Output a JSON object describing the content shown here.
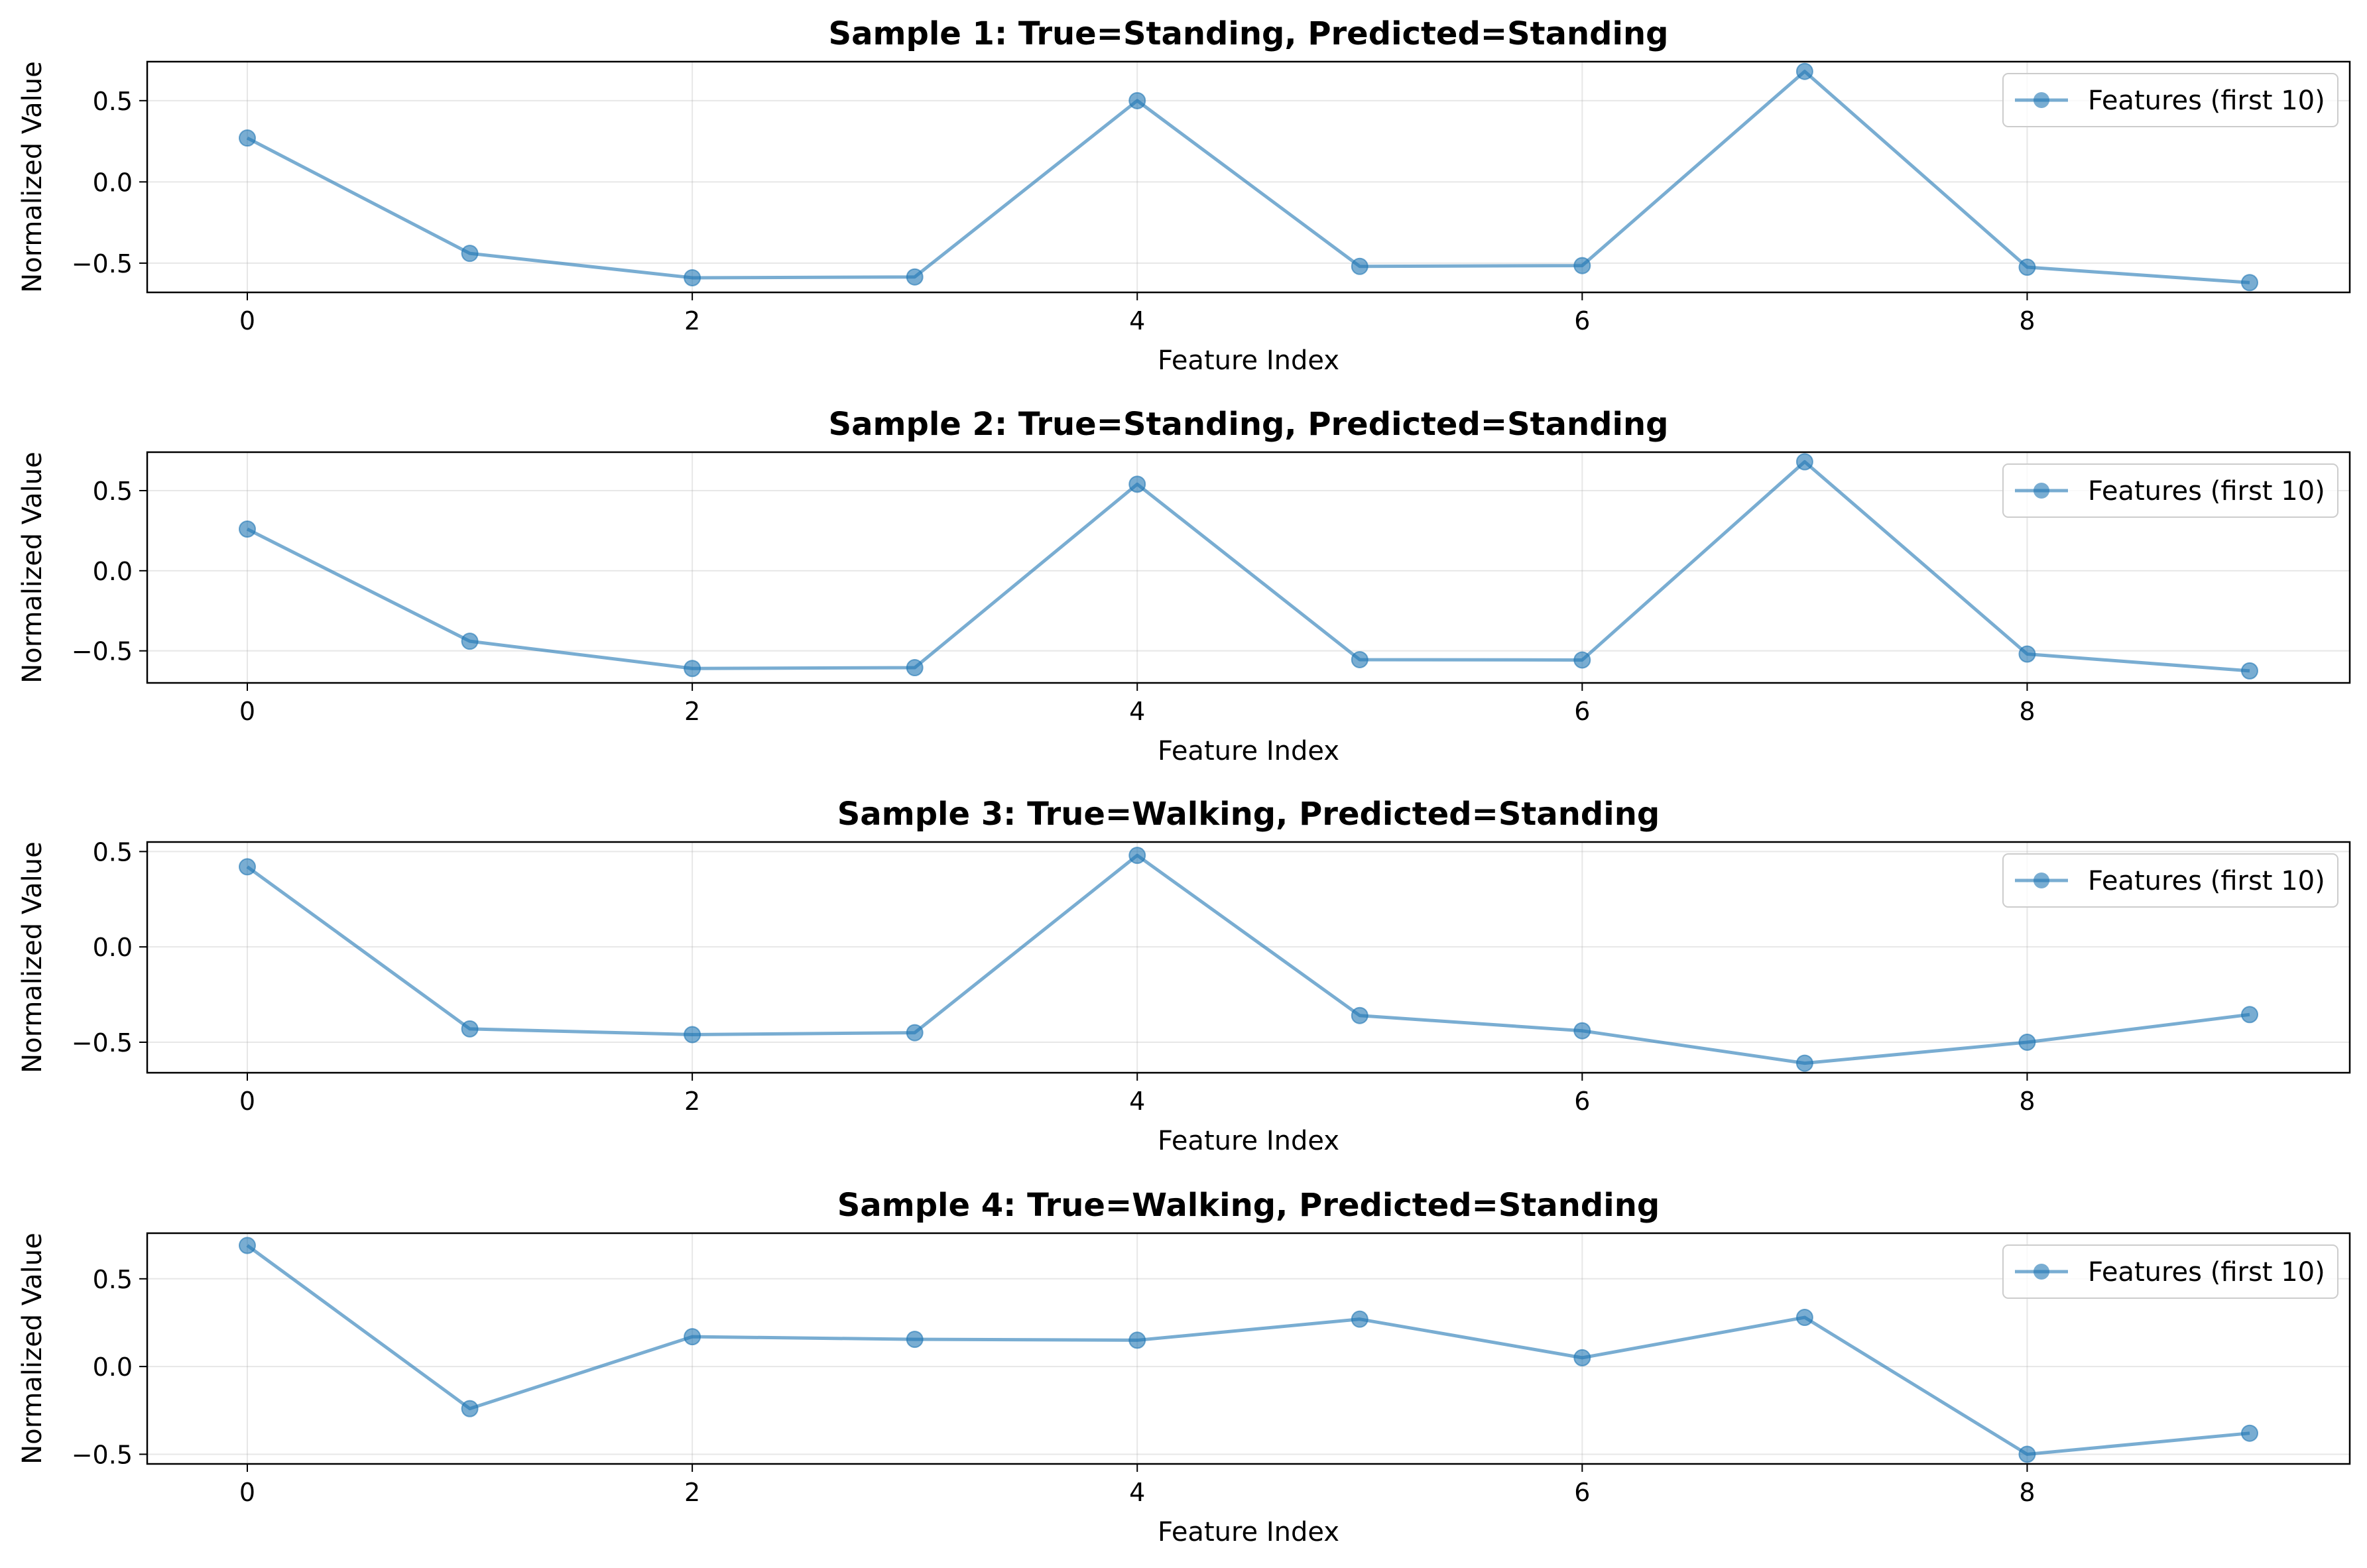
{
  "chart_data": [
    {
      "type": "line",
      "title": "Sample 1: True=Standing, Predicted=Standing",
      "xlabel": "Feature Index",
      "ylabel": "Normalized Value",
      "xlim": [
        -0.45,
        9.45
      ],
      "ylim": [
        -0.68,
        0.74
      ],
      "xticks": [
        0,
        2,
        4,
        6,
        8
      ],
      "yticks": [
        -0.5,
        0.0,
        0.5
      ],
      "ytick_labels": [
        "−0.5",
        "0.0",
        "0.5"
      ],
      "grid": true,
      "legend_position": "top-right",
      "series": [
        {
          "name": "Features (first 10)",
          "color": "#1f77b4",
          "x": [
            0,
            1,
            2,
            3,
            4,
            5,
            6,
            7,
            8,
            9
          ],
          "y": [
            0.27,
            -0.44,
            -0.59,
            -0.585,
            0.5,
            -0.52,
            -0.515,
            0.68,
            -0.525,
            -0.62
          ]
        }
      ]
    },
    {
      "type": "line",
      "title": "Sample 2: True=Standing, Predicted=Standing",
      "xlabel": "Feature Index",
      "ylabel": "Normalized Value",
      "xlim": [
        -0.45,
        9.45
      ],
      "ylim": [
        -0.7,
        0.74
      ],
      "xticks": [
        0,
        2,
        4,
        6,
        8
      ],
      "yticks": [
        -0.5,
        0.0,
        0.5
      ],
      "ytick_labels": [
        "−0.5",
        "0.0",
        "0.5"
      ],
      "grid": true,
      "legend_position": "top-right",
      "series": [
        {
          "name": "Features (first 10)",
          "color": "#1f77b4",
          "x": [
            0,
            1,
            2,
            3,
            4,
            5,
            6,
            7,
            8,
            9
          ],
          "y": [
            0.26,
            -0.44,
            -0.61,
            -0.605,
            0.54,
            -0.555,
            -0.557,
            0.68,
            -0.52,
            -0.625
          ]
        }
      ]
    },
    {
      "type": "line",
      "title": "Sample 3: True=Walking, Predicted=Standing",
      "xlabel": "Feature Index",
      "ylabel": "Normalized Value",
      "xlim": [
        -0.45,
        9.45
      ],
      "ylim": [
        -0.66,
        0.55
      ],
      "xticks": [
        0,
        2,
        4,
        6,
        8
      ],
      "yticks": [
        -0.5,
        0.0,
        0.5
      ],
      "ytick_labels": [
        "−0.5",
        "0.0",
        "0.5"
      ],
      "grid": true,
      "legend_position": "top-right",
      "series": [
        {
          "name": "Features (first 10)",
          "color": "#1f77b4",
          "x": [
            0,
            1,
            2,
            3,
            4,
            5,
            6,
            7,
            8,
            9
          ],
          "y": [
            0.42,
            -0.43,
            -0.46,
            -0.45,
            0.48,
            -0.36,
            -0.44,
            -0.61,
            -0.5,
            -0.355
          ]
        }
      ]
    },
    {
      "type": "line",
      "title": "Sample 4: True=Walking, Predicted=Standing",
      "xlabel": "Feature Index",
      "ylabel": "Normalized Value",
      "xlim": [
        -0.45,
        9.45
      ],
      "ylim": [
        -0.555,
        0.76
      ],
      "xticks": [
        0,
        2,
        4,
        6,
        8
      ],
      "yticks": [
        -0.5,
        0.0,
        0.5
      ],
      "ytick_labels": [
        "−0.5",
        "0.0",
        "0.5"
      ],
      "grid": true,
      "legend_position": "top-right",
      "series": [
        {
          "name": "Features (first 10)",
          "color": "#1f77b4",
          "x": [
            0,
            1,
            2,
            3,
            4,
            5,
            6,
            7,
            8,
            9
          ],
          "y": [
            0.69,
            -0.24,
            0.17,
            0.155,
            0.15,
            0.27,
            0.05,
            0.28,
            -0.5,
            -0.38
          ]
        }
      ]
    }
  ]
}
